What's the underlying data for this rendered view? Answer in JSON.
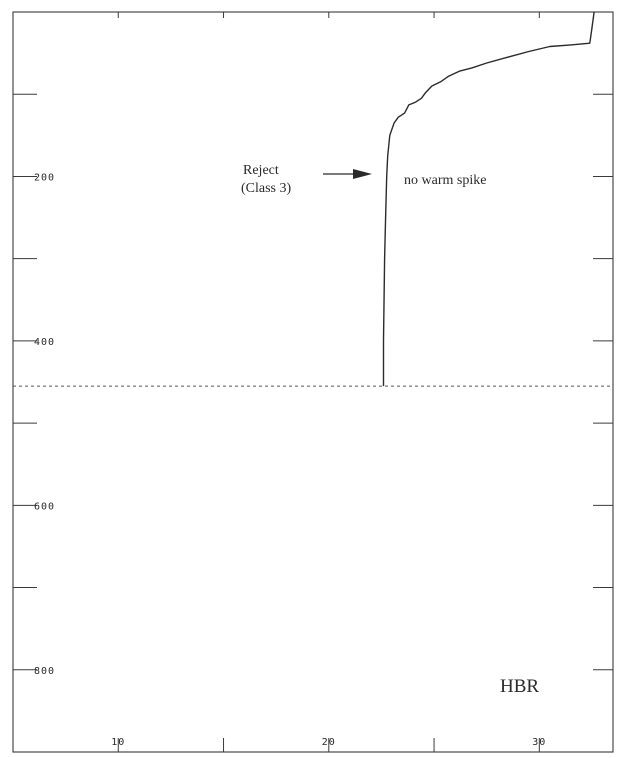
{
  "chart_data": {
    "type": "line",
    "title": "",
    "xlabel": "",
    "ylabel": "",
    "x_tick_labels": [
      "10",
      "20",
      "30"
    ],
    "y_tick_labels": [
      "200",
      "400",
      "600",
      "800"
    ],
    "y_inverted": true,
    "xlim": [
      5,
      33.5
    ],
    "ylim": [
      0,
      900
    ],
    "grid": false,
    "series": [
      {
        "name": "",
        "x": [
          32.6,
          32.5,
          32.4,
          31.5,
          30.5,
          29.5,
          28.5,
          27.5,
          26.8,
          26.2,
          25.7,
          25.3,
          24.9,
          24.6,
          24.4,
          24.1,
          23.8,
          23.6,
          23.3,
          23.1,
          22.9,
          22.8,
          22.75,
          22.7,
          22.65,
          22.6,
          22.6
        ],
        "y": [
          0,
          20,
          38,
          40,
          42,
          48,
          55,
          62,
          68,
          72,
          78,
          85,
          90,
          98,
          105,
          110,
          113,
          123,
          128,
          135,
          150,
          175,
          200,
          250,
          300,
          400,
          455
        ]
      }
    ],
    "reference_line": {
      "y": 455,
      "style": "dashed"
    },
    "annotations": {
      "reject_line1": "Reject",
      "reject_line2": "(Class 3)",
      "note": "no warm spike",
      "corner_label": "HBR"
    }
  }
}
